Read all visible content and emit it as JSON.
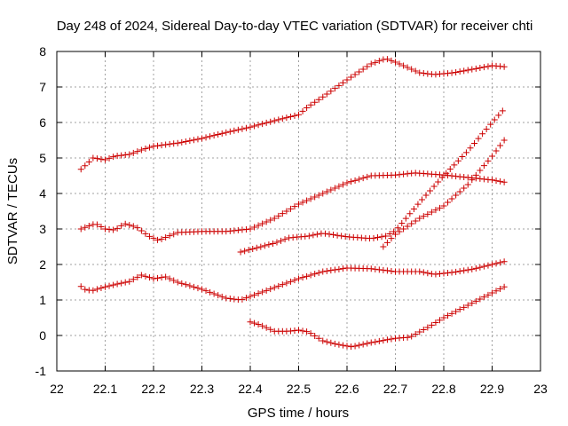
{
  "chart_data": {
    "type": "scatter",
    "title": "Day 248 of 2024, Sidereal Day-to-day VTEC variation (SDTVAR) for receiver chti",
    "xlabel": "GPS time / hours",
    "ylabel": "SDTVAR / TECUs",
    "xlim": [
      22,
      23
    ],
    "ylim": [
      -1,
      8
    ],
    "xticks": [
      "22",
      "22.1",
      "22.2",
      "22.3",
      "22.4",
      "22.5",
      "22.6",
      "22.7",
      "22.8",
      "22.9",
      "23"
    ],
    "yticks": [
      "-1",
      "0",
      "1",
      "2",
      "3",
      "4",
      "5",
      "6",
      "7",
      "8"
    ],
    "grid": true,
    "marker": "plus",
    "color": "#cc0000",
    "series": [
      {
        "name": "series-1",
        "x_start": 22.05,
        "x_end": 22.925,
        "knots": [
          [
            22.05,
            4.68
          ],
          [
            22.06,
            4.8
          ],
          [
            22.075,
            5.0
          ],
          [
            22.1,
            4.95
          ],
          [
            22.12,
            5.05
          ],
          [
            22.15,
            5.1
          ],
          [
            22.18,
            5.25
          ],
          [
            22.2,
            5.33
          ],
          [
            22.25,
            5.42
          ],
          [
            22.3,
            5.55
          ],
          [
            22.35,
            5.72
          ],
          [
            22.4,
            5.87
          ],
          [
            22.45,
            6.05
          ],
          [
            22.5,
            6.22
          ],
          [
            22.52,
            6.45
          ],
          [
            22.55,
            6.72
          ],
          [
            22.6,
            7.2
          ],
          [
            22.65,
            7.65
          ],
          [
            22.68,
            7.8
          ],
          [
            22.7,
            7.7
          ],
          [
            22.75,
            7.4
          ],
          [
            22.78,
            7.35
          ],
          [
            22.82,
            7.4
          ],
          [
            22.86,
            7.5
          ],
          [
            22.9,
            7.6
          ],
          [
            22.925,
            7.57
          ]
        ]
      },
      {
        "name": "series-2",
        "x_start": 22.05,
        "x_end": 22.925,
        "knots": [
          [
            22.05,
            3.0
          ],
          [
            22.065,
            3.08
          ],
          [
            22.08,
            3.15
          ],
          [
            22.1,
            3.0
          ],
          [
            22.12,
            2.97
          ],
          [
            22.14,
            3.15
          ],
          [
            22.165,
            3.05
          ],
          [
            22.19,
            2.8
          ],
          [
            22.21,
            2.68
          ],
          [
            22.25,
            2.9
          ],
          [
            22.3,
            2.93
          ],
          [
            22.35,
            2.93
          ],
          [
            22.4,
            3.0
          ],
          [
            22.45,
            3.3
          ],
          [
            22.5,
            3.7
          ],
          [
            22.55,
            4.0
          ],
          [
            22.6,
            4.3
          ],
          [
            22.65,
            4.5
          ],
          [
            22.7,
            4.52
          ],
          [
            22.74,
            4.58
          ],
          [
            22.8,
            4.52
          ],
          [
            22.85,
            4.45
          ],
          [
            22.9,
            4.38
          ],
          [
            22.925,
            4.32
          ]
        ]
      },
      {
        "name": "series-3",
        "x_start": 22.38,
        "x_end": 22.925,
        "knots": [
          [
            22.38,
            2.35
          ],
          [
            22.4,
            2.42
          ],
          [
            22.45,
            2.6
          ],
          [
            22.48,
            2.75
          ],
          [
            22.52,
            2.8
          ],
          [
            22.55,
            2.88
          ],
          [
            22.6,
            2.78
          ],
          [
            22.65,
            2.73
          ],
          [
            22.68,
            2.8
          ],
          [
            22.7,
            2.95
          ],
          [
            22.75,
            3.75
          ],
          [
            22.8,
            4.5
          ],
          [
            22.85,
            5.2
          ],
          [
            22.9,
            6.0
          ],
          [
            22.925,
            6.38
          ]
        ]
      },
      {
        "name": "series-4",
        "x_start": 22.675,
        "x_end": 22.925,
        "knots": [
          [
            22.675,
            2.5
          ],
          [
            22.7,
            2.85
          ],
          [
            22.75,
            3.3
          ],
          [
            22.8,
            3.65
          ],
          [
            22.85,
            4.25
          ],
          [
            22.9,
            5.05
          ],
          [
            22.925,
            5.5
          ]
        ]
      },
      {
        "name": "series-5",
        "x_start": 22.05,
        "x_end": 22.925,
        "knots": [
          [
            22.05,
            1.38
          ],
          [
            22.06,
            1.28
          ],
          [
            22.075,
            1.27
          ],
          [
            22.1,
            1.37
          ],
          [
            22.125,
            1.45
          ],
          [
            22.15,
            1.52
          ],
          [
            22.175,
            1.7
          ],
          [
            22.2,
            1.6
          ],
          [
            22.225,
            1.65
          ],
          [
            22.25,
            1.5
          ],
          [
            22.3,
            1.3
          ],
          [
            22.35,
            1.05
          ],
          [
            22.38,
            1.0
          ],
          [
            22.4,
            1.1
          ],
          [
            22.45,
            1.35
          ],
          [
            22.5,
            1.6
          ],
          [
            22.55,
            1.8
          ],
          [
            22.6,
            1.9
          ],
          [
            22.65,
            1.88
          ],
          [
            22.7,
            1.8
          ],
          [
            22.75,
            1.8
          ],
          [
            22.78,
            1.72
          ],
          [
            22.82,
            1.78
          ],
          [
            22.86,
            1.87
          ],
          [
            22.9,
            2.0
          ],
          [
            22.925,
            2.08
          ]
        ]
      },
      {
        "name": "series-6",
        "x_start": 22.4,
        "x_end": 22.925,
        "knots": [
          [
            22.4,
            0.38
          ],
          [
            22.42,
            0.3
          ],
          [
            22.45,
            0.12
          ],
          [
            22.48,
            0.12
          ],
          [
            22.5,
            0.15
          ],
          [
            22.52,
            0.1
          ],
          [
            22.55,
            -0.15
          ],
          [
            22.58,
            -0.25
          ],
          [
            22.61,
            -0.32
          ],
          [
            22.65,
            -0.2
          ],
          [
            22.7,
            -0.08
          ],
          [
            22.73,
            -0.05
          ],
          [
            22.77,
            0.25
          ],
          [
            22.8,
            0.5
          ],
          [
            22.85,
            0.85
          ],
          [
            22.9,
            1.2
          ],
          [
            22.925,
            1.37
          ]
        ]
      }
    ]
  }
}
